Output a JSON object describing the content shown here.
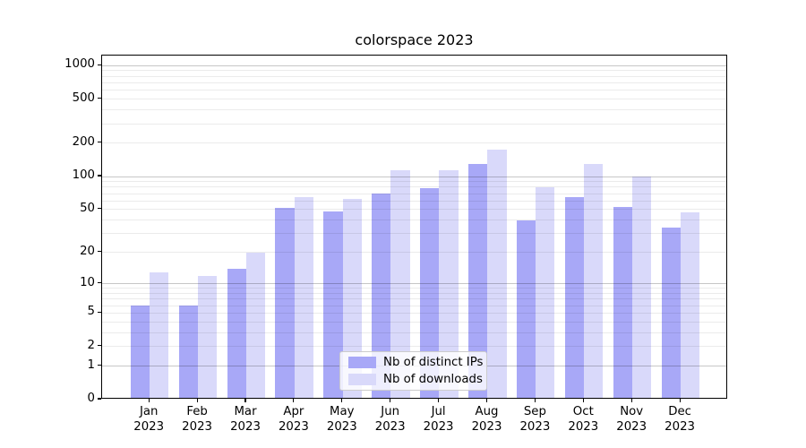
{
  "chart_data": {
    "type": "bar",
    "title": "colorspace 2023",
    "x_year": "2023",
    "categories": [
      "Jan",
      "Feb",
      "Mar",
      "Apr",
      "May",
      "Jun",
      "Jul",
      "Aug",
      "Sep",
      "Oct",
      "Nov",
      "Dec"
    ],
    "series": [
      {
        "name": "Nb of distinct IPs",
        "color": "#a8a8f7",
        "values": [
          6,
          6,
          14,
          52,
          48,
          70,
          78,
          130,
          40,
          65,
          53,
          34
        ]
      },
      {
        "name": "Nb of downloads",
        "color": "#d9d9fa",
        "values": [
          13,
          12,
          20,
          65,
          63,
          115,
          115,
          175,
          80,
          130,
          100,
          47
        ]
      }
    ],
    "yscale": "log1p",
    "ylim": [
      0,
      1236
    ],
    "yticks": [
      0,
      1,
      2,
      5,
      10,
      20,
      50,
      100,
      200,
      500,
      1000
    ],
    "major_gridline_values": [
      1,
      10,
      100,
      1000
    ],
    "minor_gridline_values": [
      2,
      3,
      4,
      5,
      6,
      7,
      8,
      9,
      20,
      30,
      40,
      50,
      60,
      70,
      80,
      90,
      200,
      300,
      400,
      500,
      600,
      700,
      800,
      900
    ],
    "grid": "horizontal",
    "legend_position": "lower center",
    "xlabel": "",
    "ylabel": ""
  },
  "colors": {
    "background": "#ffffff",
    "spine": "#000000",
    "tick": "#000000",
    "text": "#000000",
    "major_grid": "rgba(0,0,0,0.22)",
    "minor_grid": "rgba(0,0,0,0.08)",
    "legend_border": "#cccccc",
    "legend_bg": "rgba(255,255,255,0.8)"
  }
}
